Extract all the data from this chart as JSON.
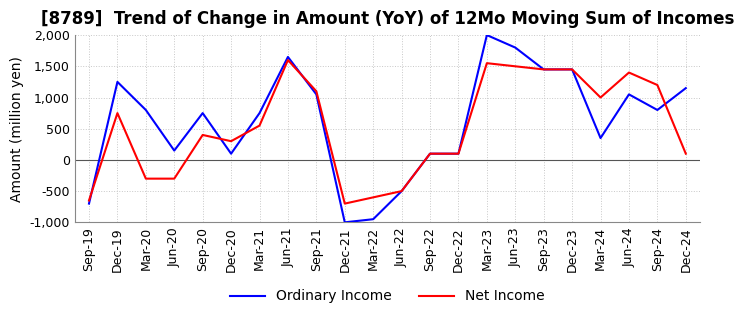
{
  "title": "[8789]  Trend of Change in Amount (YoY) of 12Mo Moving Sum of Incomes",
  "ylabel": "Amount (million yen)",
  "x_labels": [
    "Sep-19",
    "Dec-19",
    "Mar-20",
    "Jun-20",
    "Sep-20",
    "Dec-20",
    "Mar-21",
    "Jun-21",
    "Sep-21",
    "Dec-21",
    "Mar-22",
    "Jun-22",
    "Sep-22",
    "Dec-22",
    "Mar-23",
    "Jun-23",
    "Sep-23",
    "Dec-23",
    "Mar-24",
    "Jun-24",
    "Sep-24",
    "Dec-24"
  ],
  "ordinary_income": [
    -700,
    1250,
    800,
    150,
    750,
    100,
    750,
    1650,
    1050,
    -1000,
    -950,
    -500,
    100,
    100,
    2000,
    1800,
    1450,
    1450,
    350,
    1050,
    800,
    1150
  ],
  "net_income": [
    -650,
    750,
    -300,
    -300,
    400,
    300,
    550,
    1600,
    1100,
    -700,
    -600,
    -500,
    100,
    100,
    1550,
    1500,
    1450,
    1450,
    1000,
    1400,
    1200,
    100
  ],
  "ordinary_color": "#0000ff",
  "net_color": "#ff0000",
  "ylim": [
    -1000,
    2000
  ],
  "yticks": [
    -1000,
    -500,
    0,
    500,
    1000,
    1500,
    2000
  ],
  "grid_color": "#c8c8c8",
  "background_color": "#ffffff",
  "title_fontsize": 12,
  "label_fontsize": 10,
  "tick_fontsize": 9,
  "line_width": 1.5
}
